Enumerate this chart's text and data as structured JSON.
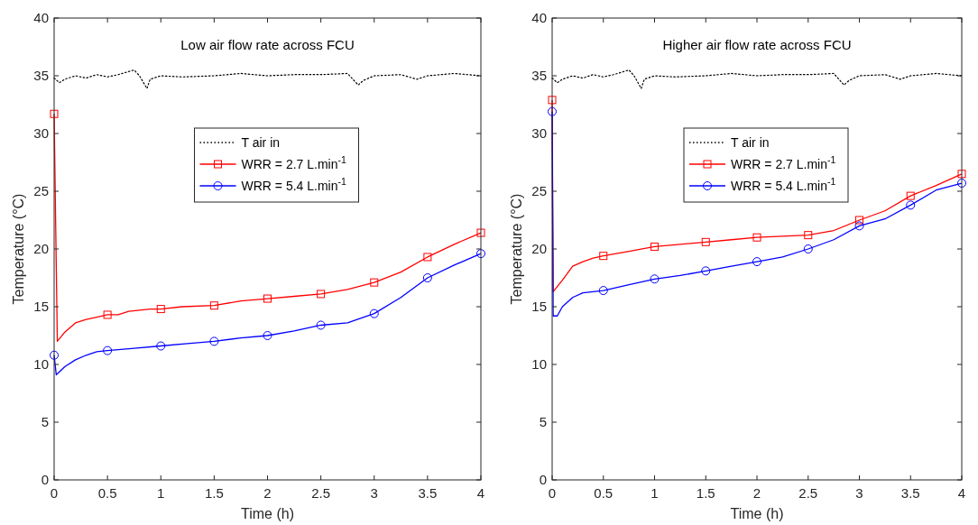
{
  "chart_data": [
    {
      "type": "line",
      "title": "Low air flow rate across FCU",
      "xlabel": "Time (h)",
      "ylabel": "Temperature (°C)",
      "xlim": [
        0,
        4
      ],
      "xticks": [
        0,
        0.5,
        1,
        1.5,
        2,
        2.5,
        3,
        3.5,
        4
      ],
      "ylim": [
        0,
        40
      ],
      "yticks": [
        0,
        5,
        10,
        15,
        20,
        25,
        30,
        35,
        40
      ],
      "grid": false,
      "legend": "top",
      "series": [
        {
          "name": "T air in",
          "color": "#000000",
          "line_style": "dotted",
          "marker": "none",
          "x": [
            0,
            0.05,
            0.1,
            0.2,
            0.3,
            0.4,
            0.5,
            0.6,
            0.75,
            0.8,
            0.87,
            0.9,
            1,
            1.2,
            1.5,
            1.75,
            2,
            2.25,
            2.5,
            2.75,
            2.85,
            2.9,
            3,
            3.25,
            3.4,
            3.5,
            3.75,
            4
          ],
          "values": [
            34.8,
            34.4,
            34.7,
            35,
            34.8,
            35.1,
            34.9,
            35.1,
            35.5,
            35,
            33.9,
            34.7,
            35,
            34.9,
            35,
            35.2,
            35,
            35.1,
            35.1,
            35.2,
            34.2,
            34.6,
            35,
            35.1,
            34.7,
            35,
            35.2,
            35
          ]
        },
        {
          "name": "WRR = 2.7 L.min$^{-1}$",
          "color": "#ff0000",
          "line_style": "solid",
          "marker": "none",
          "x": [
            0,
            0.03,
            0.1,
            0.2,
            0.3,
            0.4,
            0.5,
            0.6,
            0.7,
            0.8,
            0.9,
            1,
            1.2,
            1.5,
            1.75,
            2,
            2.25,
            2.5,
            2.75,
            3,
            3.25,
            3.5,
            3.75,
            4
          ],
          "values": [
            31.7,
            12,
            12.8,
            13.6,
            13.9,
            14.1,
            14.3,
            14.3,
            14.6,
            14.7,
            14.8,
            14.8,
            15,
            15.1,
            15.5,
            15.7,
            15.9,
            16.1,
            16.5,
            17.1,
            18,
            19.3,
            20.4,
            21.4
          ]
        },
        {
          "name": "WRR = 5.4 L.min$^{-1}$",
          "color": "#0000ff",
          "line_style": "solid",
          "marker": "none",
          "x": [
            0,
            0.02,
            0.1,
            0.2,
            0.3,
            0.4,
            0.5,
            0.75,
            1,
            1.25,
            1.5,
            1.75,
            2,
            2.25,
            2.5,
            2.75,
            3,
            3.25,
            3.5,
            3.75,
            4
          ],
          "values": [
            10.8,
            9.1,
            9.8,
            10.4,
            10.8,
            11.1,
            11.2,
            11.4,
            11.6,
            11.8,
            12,
            12.3,
            12.5,
            12.9,
            13.4,
            13.6,
            14.4,
            15.8,
            17.5,
            18.6,
            19.6
          ]
        },
        {
          "type": "scatter",
          "color": "#ff0000",
          "marker": "square",
          "x": [
            0,
            0.5,
            1,
            1.5,
            2,
            2.5,
            3,
            3.5,
            4
          ],
          "values": [
            31.7,
            14.3,
            14.8,
            15.1,
            15.7,
            16.1,
            17.1,
            19.3,
            21.4
          ]
        },
        {
          "type": "scatter",
          "color": "#0000ff",
          "marker": "circle",
          "x": [
            0,
            0.5,
            1,
            1.5,
            2,
            2.5,
            3,
            3.5,
            4
          ],
          "values": [
            10.8,
            11.2,
            11.6,
            12,
            12.5,
            13.4,
            14.4,
            17.5,
            19.6
          ]
        }
      ]
    },
    {
      "type": "line",
      "title": "Higher air flow rate across FCU",
      "xlabel": "Time (h)",
      "ylabel": "Temperature (°C)",
      "xlim": [
        0,
        4
      ],
      "xticks": [
        0,
        0.5,
        1,
        1.5,
        2,
        2.5,
        3,
        3.5,
        4
      ],
      "ylim": [
        0,
        40
      ],
      "yticks": [
        0,
        5,
        10,
        15,
        20,
        25,
        30,
        35,
        40
      ],
      "grid": false,
      "legend": "top",
      "series": [
        {
          "name": "T air in",
          "color": "#000000",
          "line_style": "dotted",
          "marker": "none",
          "x": [
            0,
            0.05,
            0.1,
            0.2,
            0.3,
            0.4,
            0.5,
            0.6,
            0.75,
            0.8,
            0.87,
            0.9,
            1,
            1.2,
            1.5,
            1.75,
            2,
            2.25,
            2.5,
            2.75,
            2.85,
            2.9,
            3,
            3.25,
            3.4,
            3.5,
            3.75,
            4
          ],
          "values": [
            34.8,
            34.4,
            34.7,
            35,
            34.8,
            35.1,
            34.9,
            35.1,
            35.5,
            35,
            33.9,
            34.7,
            35,
            34.9,
            35,
            35.2,
            35,
            35.1,
            35.1,
            35.2,
            34.2,
            34.6,
            35,
            35.1,
            34.7,
            35,
            35.2,
            35
          ]
        },
        {
          "name": "WRR = 2.7 L.min$^{-1}$",
          "color": "#ff0000",
          "line_style": "solid",
          "marker": "none",
          "x": [
            0,
            0.01,
            0.1,
            0.2,
            0.3,
            0.4,
            0.5,
            0.75,
            1,
            1.25,
            1.5,
            1.75,
            2,
            2.25,
            2.5,
            2.75,
            3,
            3.25,
            3.5,
            3.75,
            4
          ],
          "values": [
            32.9,
            16.3,
            17.3,
            18.5,
            18.9,
            19.2,
            19.4,
            19.8,
            20.2,
            20.4,
            20.6,
            20.8,
            21,
            21.1,
            21.2,
            21.6,
            22.5,
            23.3,
            24.6,
            25.5,
            26.5
          ]
        },
        {
          "name": "WRR = 5.4 L.min$^{-1}$",
          "color": "#0000ff",
          "line_style": "solid",
          "marker": "none",
          "x": [
            0,
            0.01,
            0.05,
            0.1,
            0.2,
            0.3,
            0.5,
            0.75,
            1,
            1.25,
            1.5,
            1.75,
            2,
            2.25,
            2.5,
            2.75,
            3,
            3.25,
            3.5,
            3.75,
            4
          ],
          "values": [
            31.9,
            14.2,
            14.2,
            15,
            15.8,
            16.2,
            16.4,
            16.9,
            17.4,
            17.7,
            18.1,
            18.5,
            18.9,
            19.3,
            20,
            20.8,
            22,
            22.6,
            23.8,
            25.1,
            25.7
          ]
        },
        {
          "type": "scatter",
          "color": "#ff0000",
          "marker": "square",
          "x": [
            0,
            0.5,
            1,
            1.5,
            2,
            2.5,
            3,
            3.5,
            4
          ],
          "values": [
            32.9,
            19.4,
            20.2,
            20.6,
            21,
            21.2,
            22.5,
            24.6,
            26.5
          ]
        },
        {
          "type": "scatter",
          "color": "#0000ff",
          "marker": "circle",
          "x": [
            0,
            0.5,
            1,
            1.5,
            2,
            2.5,
            3,
            3.5,
            4
          ],
          "values": [
            31.9,
            16.4,
            17.4,
            18.1,
            18.9,
            20,
            22,
            23.8,
            25.7
          ]
        }
      ]
    }
  ]
}
